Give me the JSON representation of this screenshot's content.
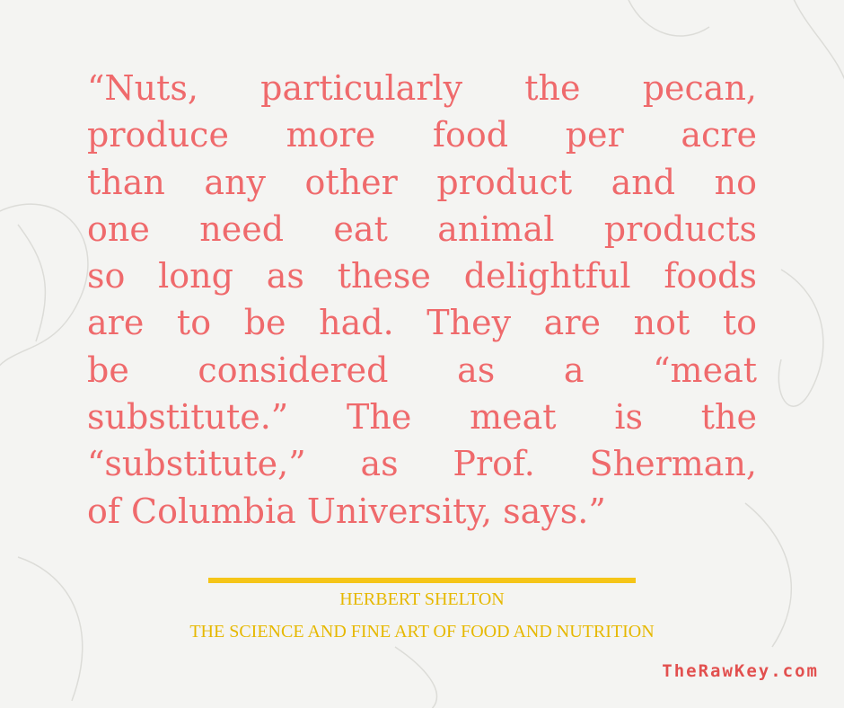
{
  "quote": {
    "lines": [
      "“Nuts, particularly the pecan,",
      "produce more food per acre",
      "than any other product and no",
      "one need eat animal products",
      "so long as these delightful foods",
      "are to be had. They are not to",
      "be considered as a “meat",
      "substitute.” The meat is the",
      "“substitute,” as Prof. Sherman,",
      "of Columbia University, says.”"
    ]
  },
  "attribution": {
    "author": "HERBERT SHELTON",
    "source": "THE SCIENCE AND FINE ART OF FOOD AND NUTRITION"
  },
  "footer": {
    "website": "TheRawKey.com"
  }
}
